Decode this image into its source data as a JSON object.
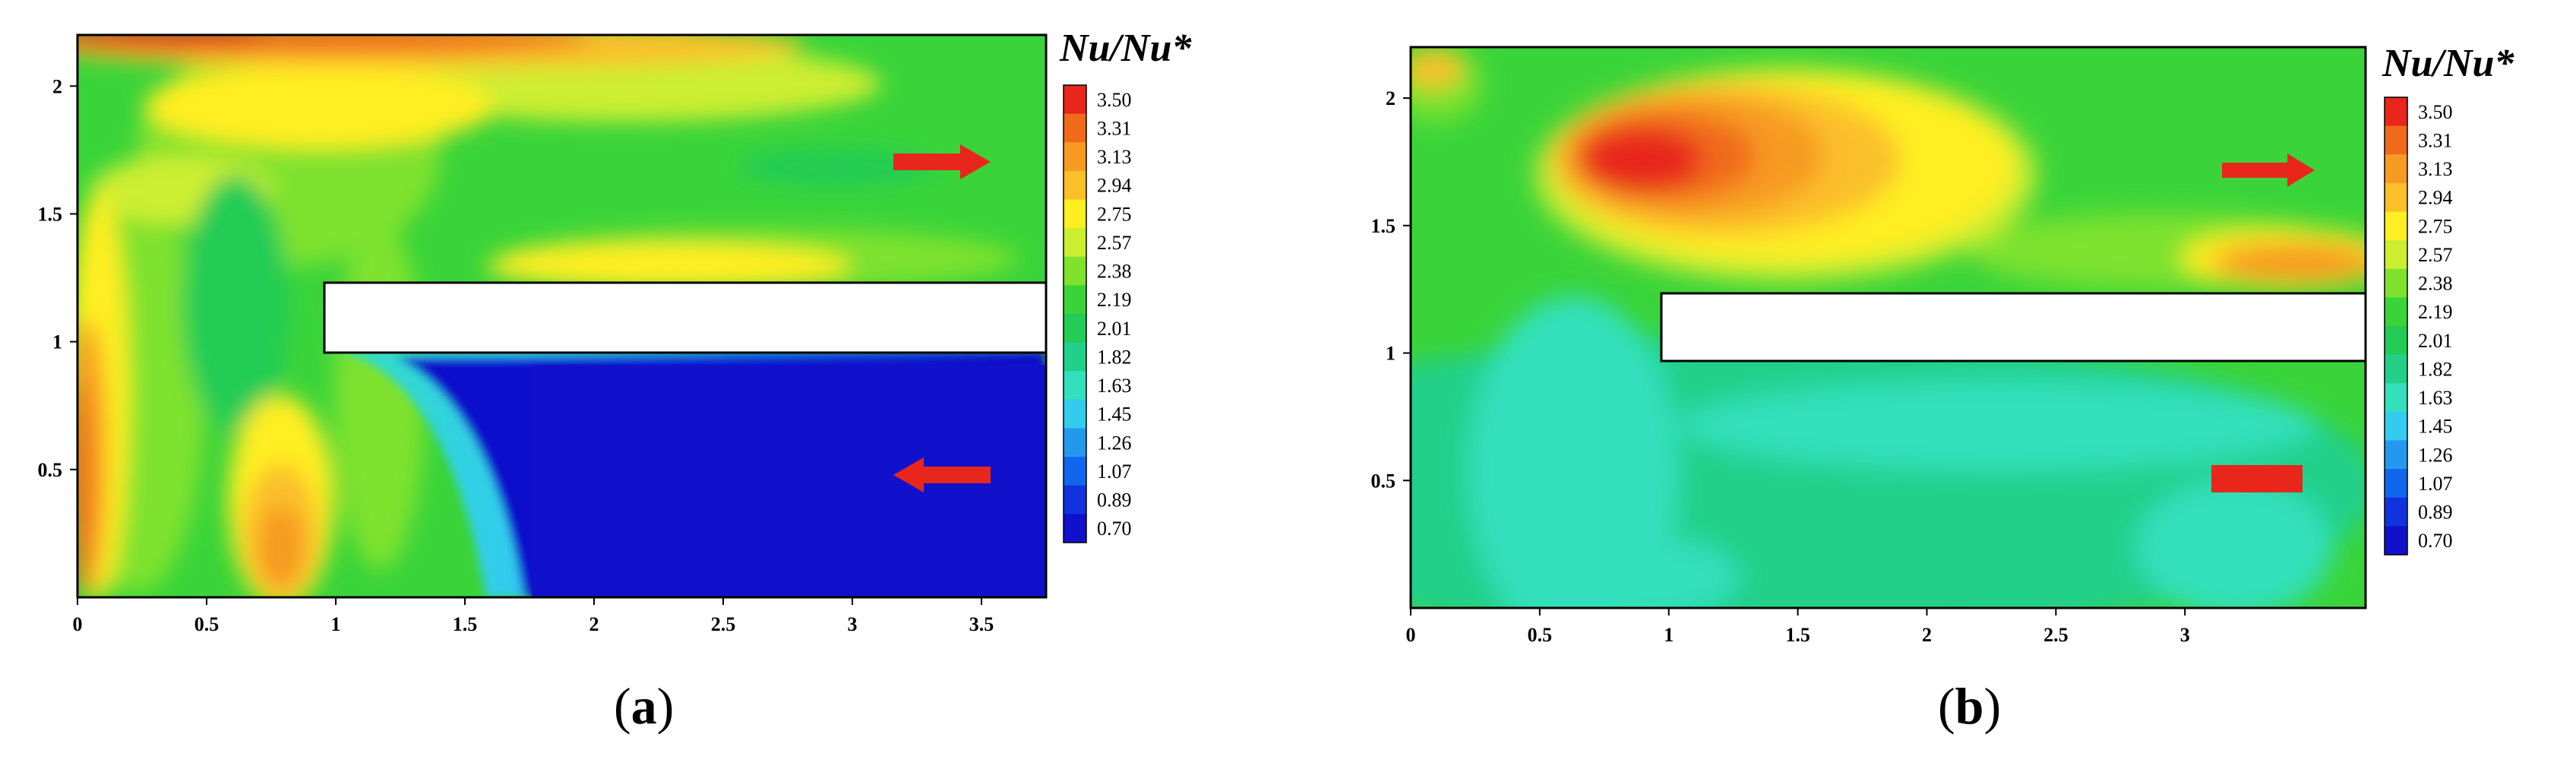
{
  "chart_data": [
    {
      "type": "heatmap",
      "caption": "a",
      "colorbar_title": "Nu/Nu*",
      "colorbar_levels": [
        3.5,
        3.31,
        3.13,
        2.94,
        2.75,
        2.57,
        2.38,
        2.19,
        2.01,
        1.82,
        1.63,
        1.45,
        1.26,
        1.07,
        0.89,
        0.7
      ],
      "colorbar_colors": [
        "#e8261c",
        "#f06a1c",
        "#f79a22",
        "#fbbf2a",
        "#ffee22",
        "#cdee30",
        "#7ee22e",
        "#3ad43a",
        "#22cc55",
        "#22d08a",
        "#33e0bb",
        "#33ccee",
        "#2299ee",
        "#1166ee",
        "#1133dd",
        "#1111cc"
      ],
      "xlim": [
        0,
        3.75
      ],
      "ylim": [
        0,
        2.2
      ],
      "x_ticks": [
        "0",
        "0.5",
        "1",
        "1.5",
        "2",
        "2.5",
        "3",
        "3.5"
      ],
      "y_ticks": [
        "0.5",
        "1",
        "1.5",
        "2"
      ],
      "arrows": [
        {
          "direction": "right",
          "x": 3.35,
          "y": 1.75
        },
        {
          "direction": "left",
          "x": 3.35,
          "y": 0.5
        }
      ]
    },
    {
      "type": "heatmap",
      "caption": "b",
      "colorbar_title": "Nu/Nu*",
      "colorbar_levels": [
        3.5,
        3.31,
        3.13,
        2.94,
        2.75,
        2.57,
        2.38,
        2.19,
        2.01,
        1.82,
        1.63,
        1.45,
        1.26,
        1.07,
        0.89,
        0.7
      ],
      "colorbar_colors": [
        "#e8261c",
        "#f06a1c",
        "#f79a22",
        "#fbbf2a",
        "#ffee22",
        "#cdee30",
        "#7ee22e",
        "#3ad43a",
        "#22cc55",
        "#22d08a",
        "#33e0bb",
        "#33ccee",
        "#2299ee",
        "#1166ee",
        "#1133dd",
        "#1111cc"
      ],
      "xlim": [
        0,
        3.75
      ],
      "ylim": [
        0,
        2.2
      ],
      "x_ticks": [
        "0",
        "0.5",
        "1",
        "1.5",
        "2",
        "2.5",
        "3"
      ],
      "y_ticks": [
        "0.5",
        "1",
        "1.5",
        "2"
      ],
      "arrows": [
        {
          "direction": "right",
          "x": 3.25,
          "y": 1.72
        },
        {
          "direction": "none",
          "x": 3.25,
          "y": 0.5
        }
      ]
    }
  ]
}
